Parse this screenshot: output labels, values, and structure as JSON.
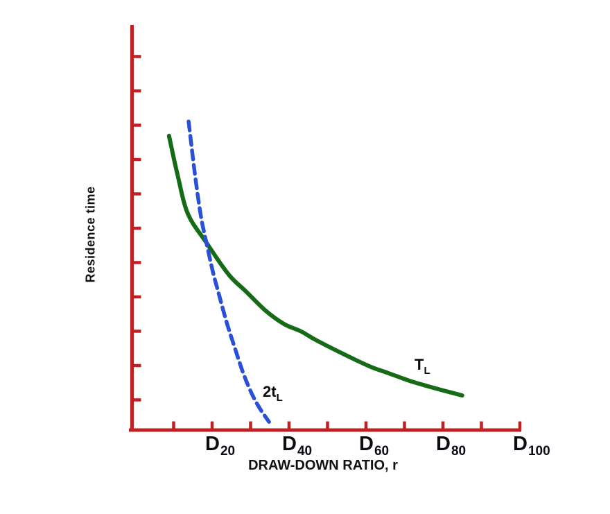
{
  "figure": {
    "background": "#ffffff",
    "axis_color": "#c01f24",
    "text_color": "#111111"
  },
  "chart_data": {
    "type": "line",
    "title": "",
    "xlabel": "DRAW-DOWN RATIO, r",
    "ylabel": "Residence time",
    "grid": false,
    "legend": "inline-curve-labels",
    "x_axis": {
      "range": [
        0,
        100
      ],
      "tick_step": 10,
      "tick_count": 10,
      "labeled_ticks": [
        {
          "main": "D",
          "sub": "20",
          "value": 20
        },
        {
          "main": "D",
          "sub": "40",
          "value": 40
        },
        {
          "main": "D",
          "sub": "60",
          "value": 60
        },
        {
          "main": "D",
          "sub": "80",
          "value": 80
        },
        {
          "main": "D",
          "sub": "100",
          "value": 100
        }
      ]
    },
    "y_axis": {
      "range": [
        0,
        120
      ],
      "tick_values": [
        10,
        20,
        30,
        40,
        50,
        60,
        70,
        80,
        90,
        100,
        110
      ]
    },
    "series": [
      {
        "name": "TL",
        "label": {
          "main": "T",
          "sub": "L"
        },
        "color": "#166b16",
        "line_style": "solid",
        "x": [
          8.8,
          11.0,
          13.7,
          18.4,
          24.3,
          28.8,
          33.9,
          38.7,
          43.2,
          47.2,
          55.9,
          61.3,
          65.8,
          71.2,
          75.7,
          80.2,
          85.0
        ],
        "y": [
          86.9,
          75.6,
          64.2,
          56.0,
          46.5,
          41.6,
          36.0,
          32.1,
          29.9,
          27.3,
          22.4,
          19.6,
          17.8,
          15.6,
          14.1,
          12.7,
          11.3
        ]
      },
      {
        "name": "2tL",
        "label": {
          "main": "2t",
          "sub": "L"
        },
        "color": "#2950d6",
        "line_style": "dashed",
        "x": [
          13.9,
          15.5,
          17.1,
          18.4,
          20.2,
          21.8,
          23.8,
          25.8,
          27.9,
          30.1,
          32.3,
          34.8
        ],
        "y": [
          91.1,
          76.0,
          63.4,
          56.4,
          47.3,
          40.6,
          32.5,
          25.5,
          18.4,
          12.3,
          7.7,
          3.6
        ]
      }
    ]
  }
}
